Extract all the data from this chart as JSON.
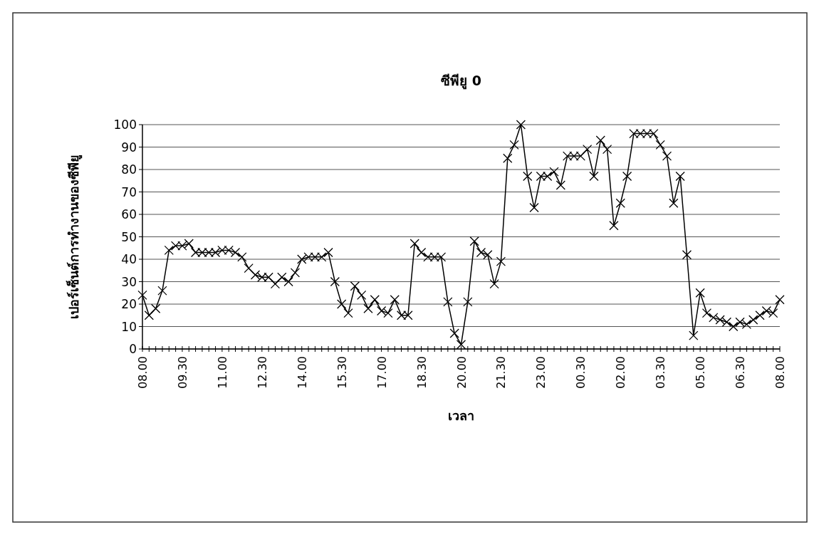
{
  "chart_data": {
    "type": "line",
    "title": "ซีพียู 0",
    "xlabel": "เวลา",
    "ylabel": "เปอร์เซ็นต์การทำงานของซีพียู",
    "categories": [
      "08.00",
      null,
      null,
      null,
      null,
      null,
      "09.30",
      null,
      null,
      null,
      null,
      null,
      "11.00",
      null,
      null,
      null,
      null,
      null,
      "12.30",
      null,
      null,
      null,
      null,
      null,
      "14.00",
      null,
      null,
      null,
      null,
      null,
      "15.30",
      null,
      null,
      null,
      null,
      null,
      "17.00",
      null,
      null,
      null,
      null,
      null,
      "18.30",
      null,
      null,
      null,
      null,
      null,
      "20.00",
      null,
      null,
      null,
      null,
      null,
      "21.30",
      null,
      null,
      null,
      null,
      null,
      "23.00",
      null,
      null,
      null,
      null,
      null,
      "00.30",
      null,
      null,
      null,
      null,
      null,
      "02.00",
      null,
      null,
      null,
      null,
      null,
      "03.30",
      null,
      null,
      null,
      null,
      null,
      "05.00",
      null,
      null,
      null,
      null,
      null,
      "06.30",
      null,
      null,
      null,
      null,
      null,
      "08.00"
    ],
    "values": [
      24,
      15,
      18,
      26,
      44,
      46,
      46,
      47,
      43,
      43,
      43,
      43,
      44,
      44,
      43,
      41,
      36,
      33,
      32,
      32,
      29,
      32,
      30,
      34,
      40,
      41,
      41,
      41,
      43,
      30,
      20,
      16,
      28,
      24,
      18,
      22,
      17,
      16,
      22,
      15,
      15,
      47,
      43,
      41,
      41,
      41,
      21,
      7,
      2,
      21,
      48,
      43,
      42,
      29,
      39,
      85,
      91,
      100,
      77,
      63,
      77,
      77,
      79,
      73,
      86,
      86,
      86,
      89,
      77,
      93,
      89,
      55,
      65,
      77,
      96,
      96,
      96,
      96,
      91,
      86,
      65,
      77,
      42,
      6,
      25,
      16,
      14,
      13,
      12,
      10,
      12,
      11,
      13,
      15,
      17,
      16,
      22
    ],
    "color": "#000000",
    "marker": "cross",
    "line_style": "solid",
    "grid": "y",
    "ylim": [
      0,
      100
    ],
    "yticks": [
      0,
      10,
      20,
      30,
      40,
      50,
      60,
      70,
      80,
      90,
      100
    ]
  }
}
